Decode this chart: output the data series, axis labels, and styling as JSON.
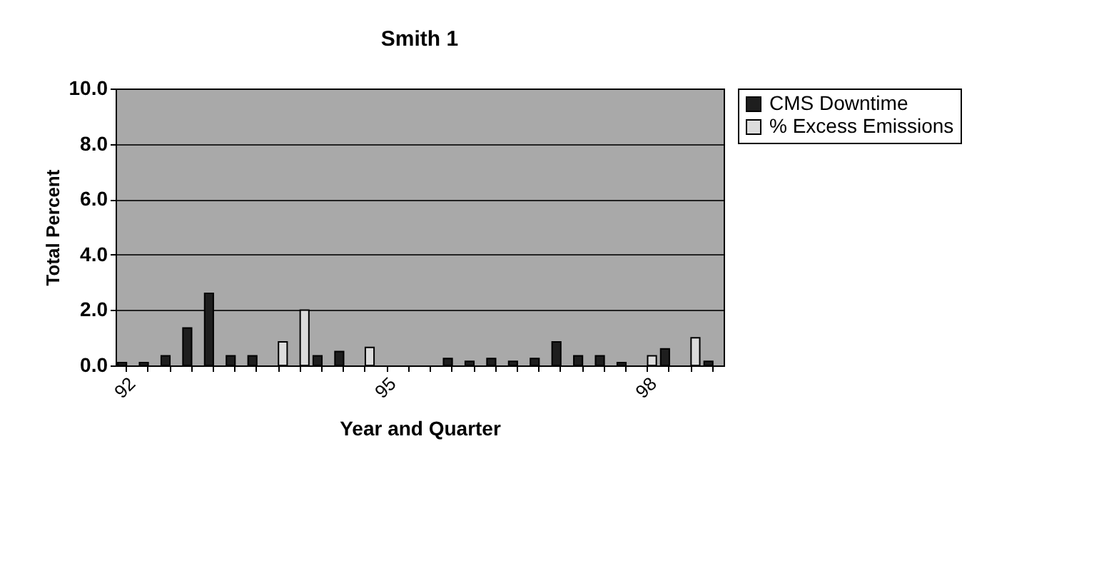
{
  "chart_data": {
    "type": "bar",
    "title": "Smith 1",
    "xlabel": "Year and Quarter",
    "ylabel": "Total Percent",
    "categories": [
      "92",
      null,
      null,
      null,
      null,
      null,
      null,
      null,
      null,
      null,
      null,
      null,
      "95",
      null,
      null,
      null,
      null,
      null,
      null,
      null,
      null,
      null,
      null,
      null,
      "98",
      null,
      null,
      null
    ],
    "series": [
      {
        "name": "CMS Downtime",
        "color": "#1e1e1e",
        "values": [
          0.1,
          0.1,
          0.35,
          1.35,
          2.6,
          0.35,
          0.35,
          null,
          null,
          0.35,
          0.5,
          null,
          null,
          null,
          null,
          0.25,
          0.15,
          0.25,
          0.15,
          0.25,
          0.85,
          0.35,
          0.35,
          0.1,
          null,
          0.6,
          null,
          0.15
        ]
      },
      {
        "name": "% Excess Emissions",
        "color": "#dcdcdc",
        "values": [
          null,
          null,
          null,
          null,
          null,
          null,
          null,
          0.85,
          2.0,
          null,
          null,
          0.65,
          null,
          null,
          null,
          null,
          null,
          null,
          null,
          null,
          null,
          null,
          null,
          null,
          0.35,
          null,
          1.0,
          null
        ]
      }
    ],
    "ylim": [
      0,
      10
    ],
    "yticks": [
      {
        "value": 0,
        "label": "0.0"
      },
      {
        "value": 2,
        "label": "2.0"
      },
      {
        "value": 4,
        "label": "4.0"
      },
      {
        "value": 6,
        "label": "6.0"
      },
      {
        "value": 8,
        "label": "8.0"
      },
      {
        "value": 10,
        "label": "10.0"
      }
    ],
    "grid": "y",
    "legend": "right"
  }
}
